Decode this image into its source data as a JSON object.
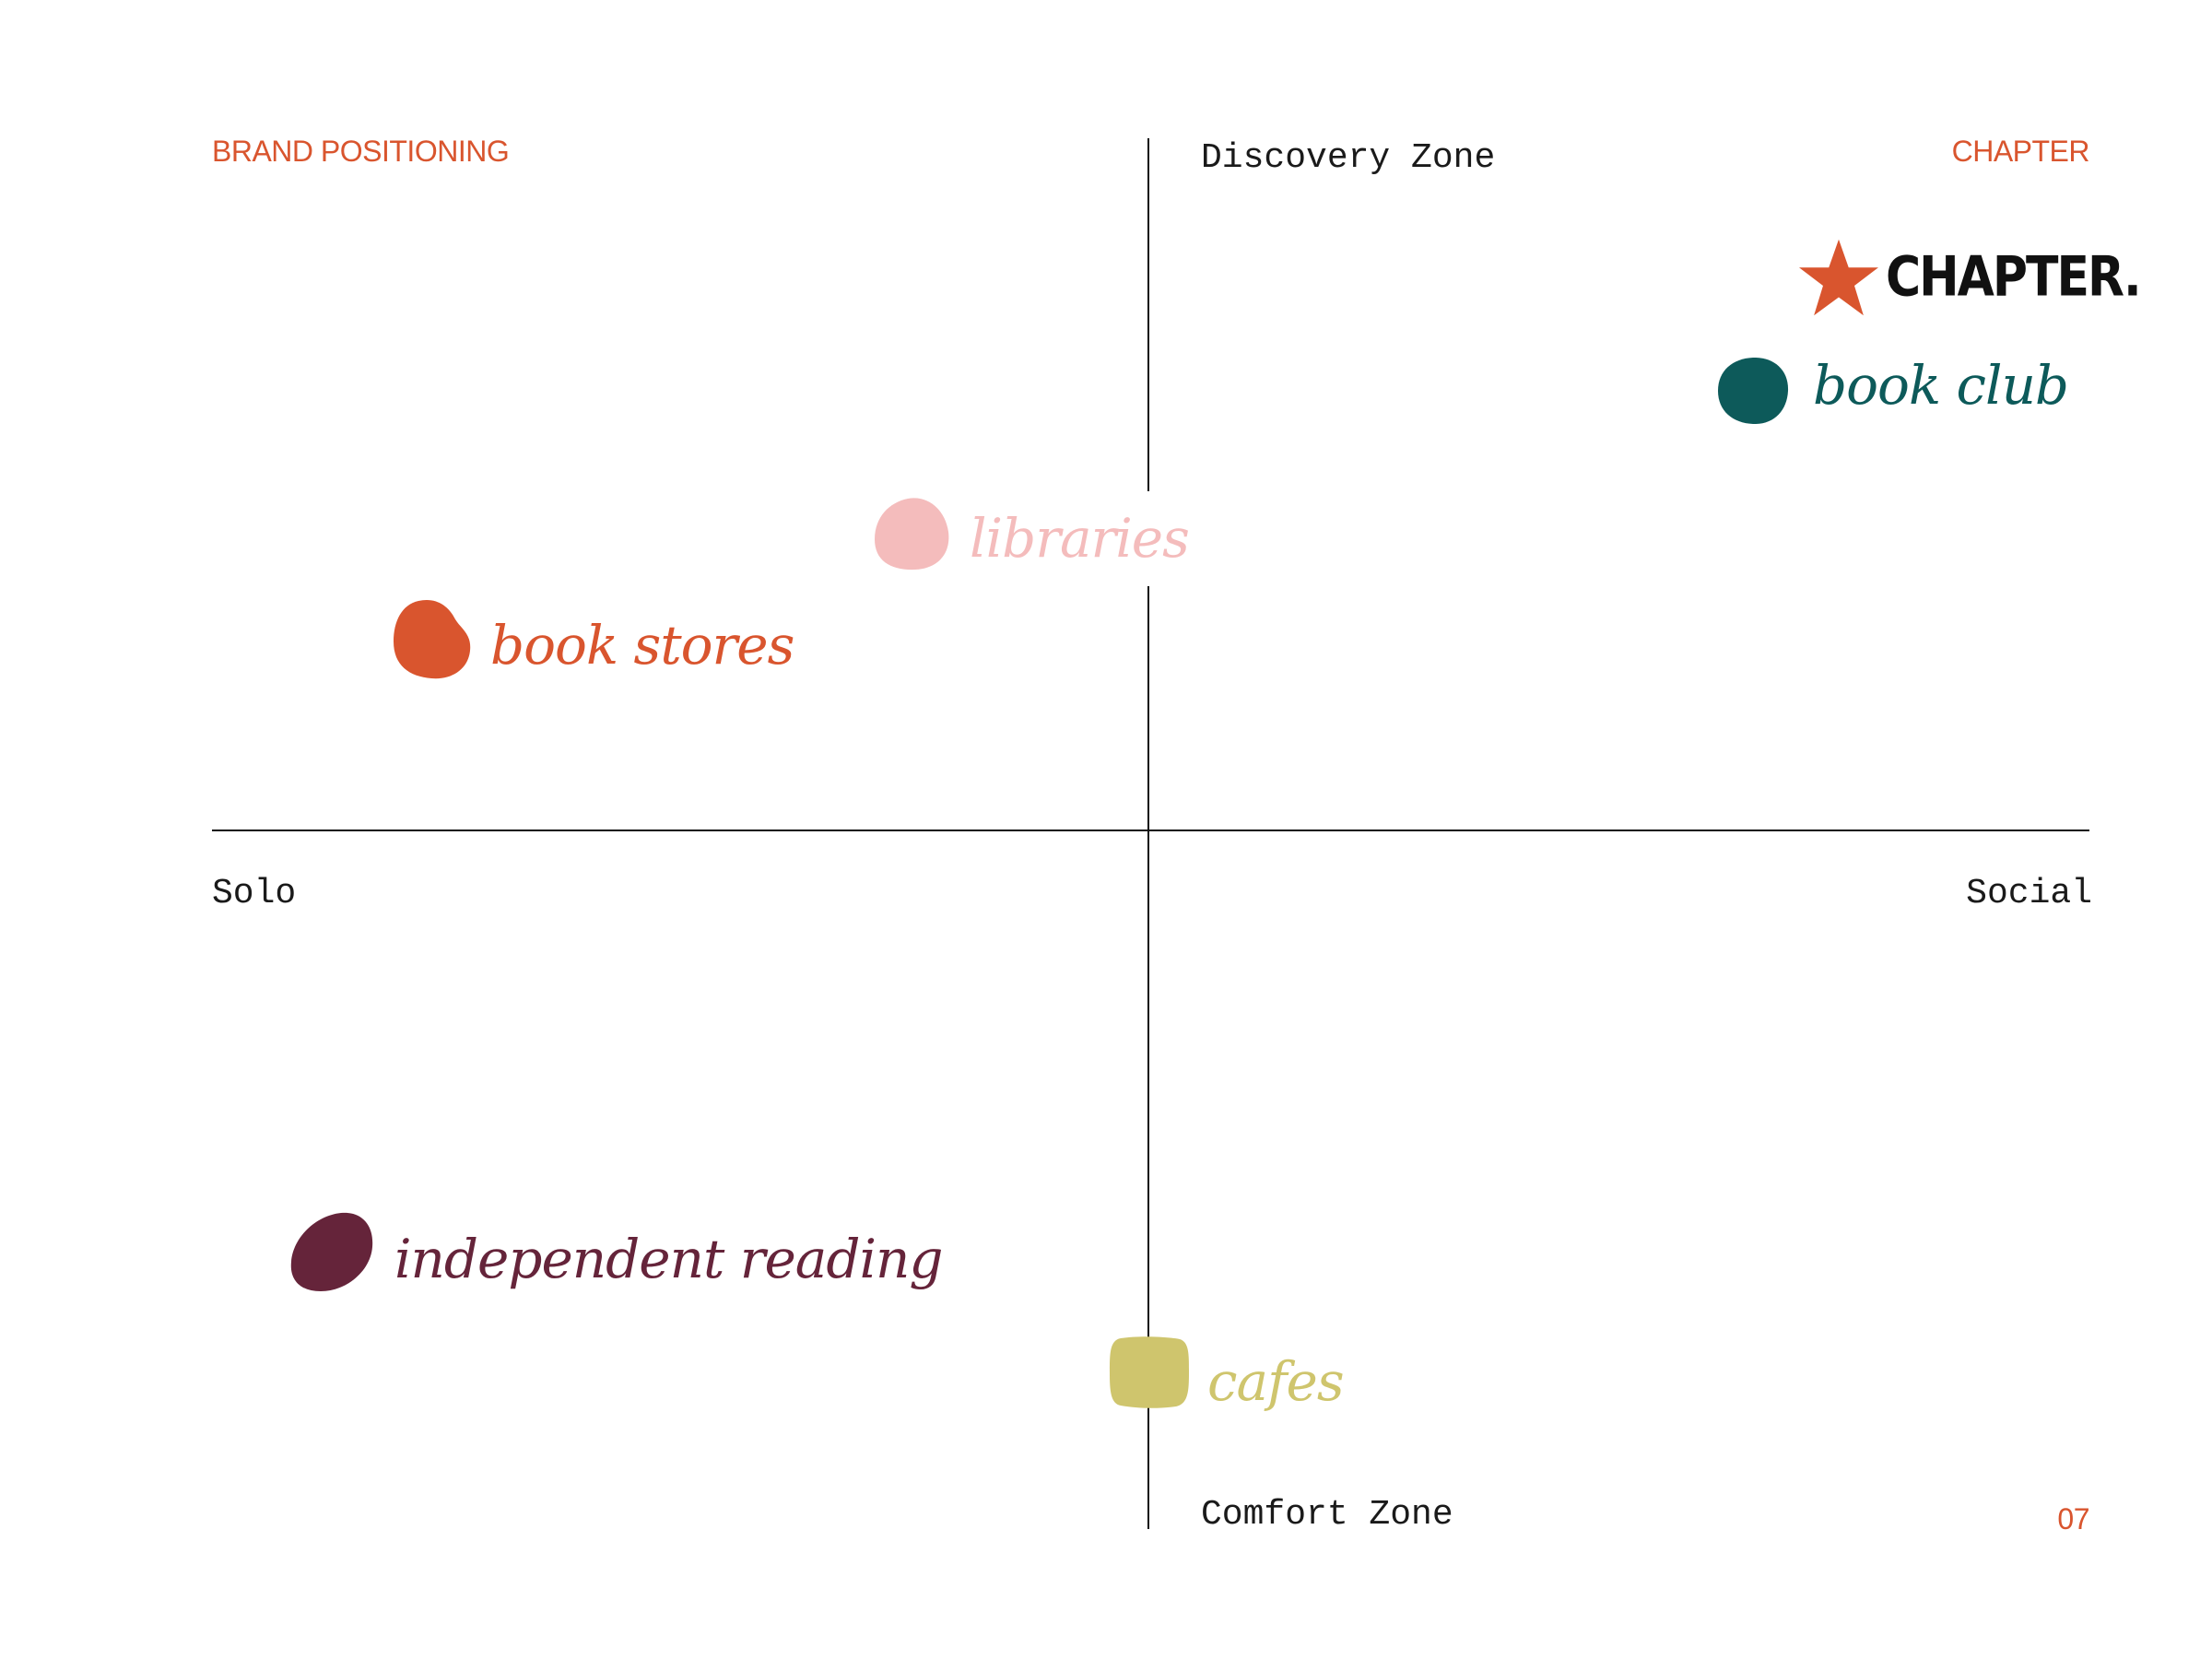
{
  "header": {
    "left": "BRAND POSITIONING",
    "right": "CHAPTER",
    "page_number": "07"
  },
  "axes": {
    "top": "Discovery Zone",
    "bottom": "Comfort Zone",
    "left": "Solo",
    "right": "Social"
  },
  "colors": {
    "accent": "#d9552e",
    "text": "#1a1a1a",
    "book_club": "#0d5a5a",
    "libraries": "#f4bcbc",
    "book_stores": "#d9552e",
    "independent_reading": "#65243a",
    "cafes": "#cfc56d"
  },
  "brand": {
    "name": "CHAPTER.",
    "icon": "star-icon"
  },
  "items": {
    "book_club": "book club",
    "libraries": "libraries",
    "book_stores": "book stores",
    "independent_reading": "independent reading",
    "cafes": "cafes"
  }
}
